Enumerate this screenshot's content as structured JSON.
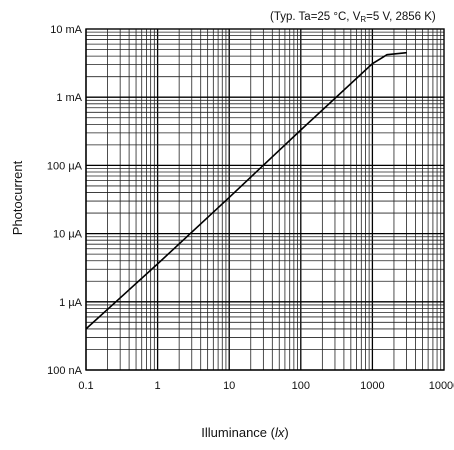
{
  "chart_data": {
    "type": "line",
    "conditions": "(Typ. Ta=25 °C, V",
    "conditions_sub": "R",
    "conditions_tail": "=5 V, 2856 K)",
    "xlabel": "Illuminance (",
    "xlabel_unit": "lx",
    "xlabel_close": ")",
    "ylabel": "Photocurrent",
    "x_scale": "log",
    "y_scale": "log",
    "xlim": [
      0.1,
      10000
    ],
    "ylim_A": [
      1e-07,
      0.01
    ],
    "x_ticks": [
      {
        "value": 0.1,
        "label": "0.1"
      },
      {
        "value": 1,
        "label": "1"
      },
      {
        "value": 10,
        "label": "10"
      },
      {
        "value": 100,
        "label": "100"
      },
      {
        "value": 1000,
        "label": "1000"
      },
      {
        "value": 10000,
        "label": "10000"
      }
    ],
    "y_ticks": [
      {
        "value": 1e-07,
        "label": "100 nA"
      },
      {
        "value": 1e-06,
        "label": "1 µA"
      },
      {
        "value": 1e-05,
        "label": "10 µA"
      },
      {
        "value": 0.0001,
        "label": "100 µA"
      },
      {
        "value": 0.001,
        "label": "1 mA"
      },
      {
        "value": 0.01,
        "label": "10 mA"
      }
    ],
    "grid": true,
    "series": [
      {
        "x": [
          0.1,
          1,
          10,
          100,
          1000,
          1600,
          3000
        ],
        "y": [
          4e-07,
          3.6e-06,
          3.4e-05,
          0.00033,
          0.0031,
          0.0042,
          0.0045
        ]
      }
    ]
  }
}
